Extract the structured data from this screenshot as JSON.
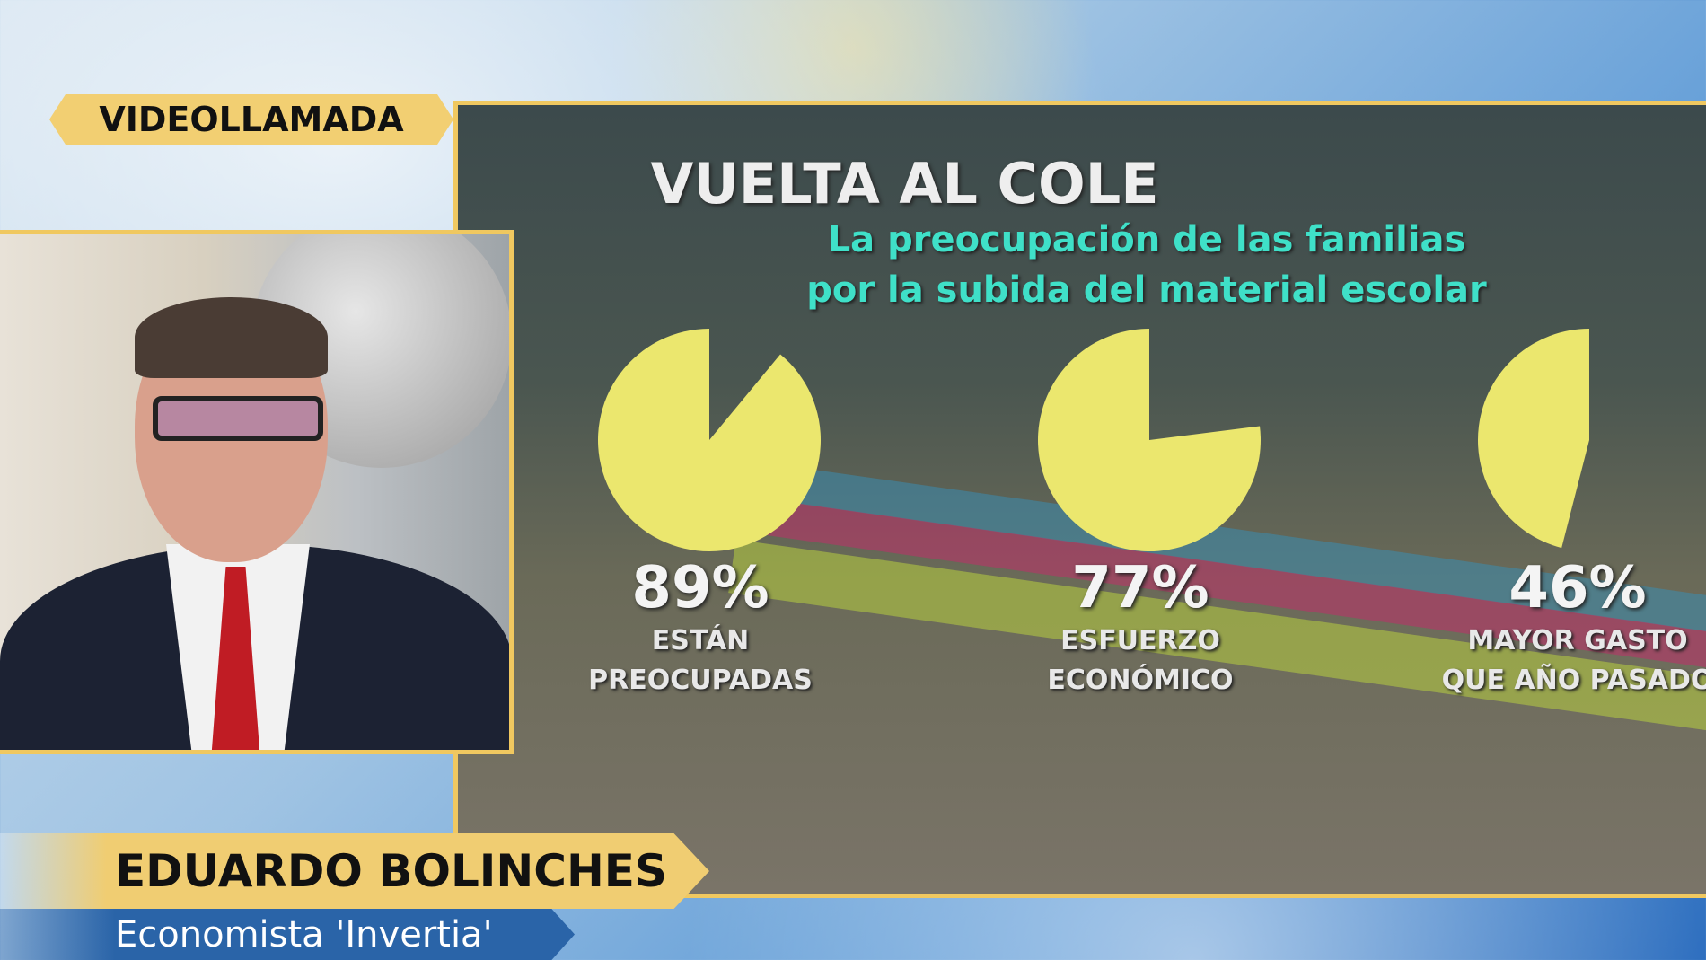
{
  "badge": "VIDEOLLAMADA",
  "lower_third": {
    "name": "EDUARDO BOLINCHES",
    "role": "Economista 'Invertia'"
  },
  "colors": {
    "pie": "#ebe76e",
    "subtitle": "#3fe0c8",
    "gold": "#f0c860"
  },
  "chart_data": {
    "type": "pie",
    "title": "VUELTA AL COLE",
    "subtitle": [
      "La preocupación de las familias",
      "por la subida del material escolar"
    ],
    "items": [
      {
        "value": 89,
        "value_label": "89%",
        "label": [
          "ESTÁN",
          "PREOCUPADAS"
        ]
      },
      {
        "value": 77,
        "value_label": "77%",
        "label": [
          "ESFUERZO",
          "ECONÓMICO"
        ]
      },
      {
        "value": 46,
        "value_label": "46%",
        "label": [
          "MAYOR GASTO",
          "QUE AÑO PASADO"
        ]
      }
    ]
  }
}
